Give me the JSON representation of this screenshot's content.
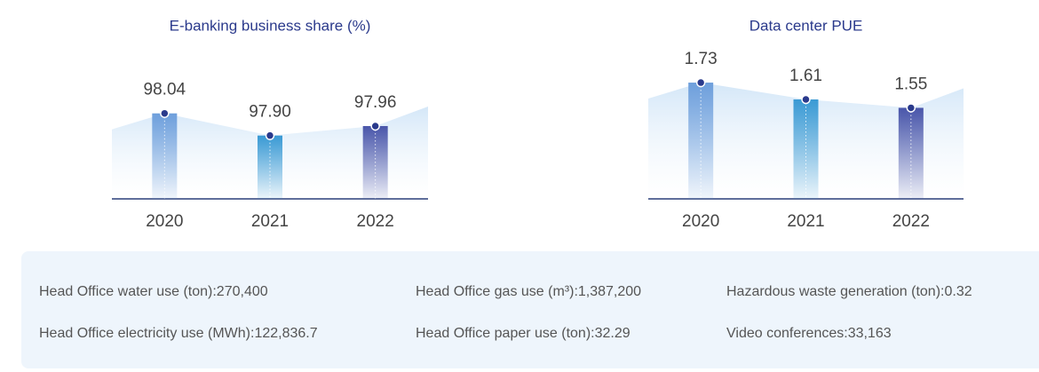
{
  "chart_data": [
    {
      "type": "bar",
      "title": "E-banking business share (%)",
      "categories": [
        "2020",
        "2021",
        "2022"
      ],
      "values": [
        98.04,
        97.9,
        97.96
      ],
      "value_labels": [
        "98.04",
        "97.90",
        "97.96"
      ],
      "colors": [
        "#6e9fdc",
        "#3a9ad4",
        "#4a56aa"
      ],
      "ylim": [
        97.5,
        98.1
      ]
    },
    {
      "type": "bar",
      "title": "Data center PUE",
      "categories": [
        "2020",
        "2021",
        "2022"
      ],
      "values": [
        1.73,
        1.61,
        1.55
      ],
      "colors": [
        "#6e9fdc",
        "#3a9ad4",
        "#4a56aa"
      ],
      "ylim": [
        0.9,
        1.8
      ]
    }
  ],
  "stats": {
    "items": [
      "Head Office water use (ton):270,400",
      "Head Office gas use (m³):1,387,200",
      "Hazardous waste generation (ton):0.32",
      "Head Office electricity use (MWh):122,836.7",
      "Head Office paper use (ton):32.29",
      "Video conferences:33,163"
    ]
  }
}
